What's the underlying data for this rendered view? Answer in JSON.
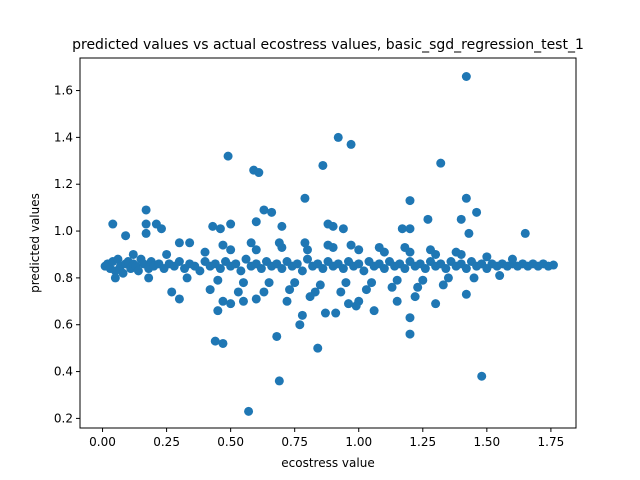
{
  "chart_data": {
    "type": "scatter",
    "title": "predicted values vs actual ecostress values, basic_sgd_regression_test_1",
    "xlabel": "ecostress value",
    "ylabel": "predicted values",
    "xlim": [
      -0.088,
      1.848
    ],
    "ylim": [
      0.159,
      1.739
    ],
    "xticks": [
      "0.00",
      "0.25",
      "0.50",
      "0.75",
      "1.00",
      "1.25",
      "1.50",
      "1.75"
    ],
    "xtick_values": [
      0.0,
      0.25,
      0.5,
      0.75,
      1.0,
      1.25,
      1.5,
      1.75
    ],
    "yticks": [
      "0.2",
      "0.4",
      "0.6",
      "0.8",
      "1.0",
      "1.2",
      "1.4",
      "1.6"
    ],
    "ytick_values": [
      0.2,
      0.4,
      0.6,
      0.8,
      1.0,
      1.2,
      1.4,
      1.6
    ],
    "grid": false,
    "marker_color": "#1f77b4",
    "series": [
      {
        "points": [
          [
            0.01,
            0.85
          ],
          [
            0.02,
            0.86
          ],
          [
            0.03,
            0.84
          ],
          [
            0.04,
            0.87
          ],
          [
            0.05,
            0.83
          ],
          [
            0.06,
            0.88
          ],
          [
            0.07,
            0.85
          ],
          [
            0.08,
            0.82
          ],
          [
            0.09,
            0.86
          ],
          [
            0.1,
            0.87
          ],
          [
            0.11,
            0.84
          ],
          [
            0.12,
            0.86
          ],
          [
            0.13,
            0.85
          ],
          [
            0.14,
            0.83
          ],
          [
            0.15,
            0.88
          ],
          [
            0.16,
            0.86
          ],
          [
            0.18,
            0.84
          ],
          [
            0.19,
            0.87
          ],
          [
            0.2,
            0.85
          ],
          [
            0.22,
            0.86
          ],
          [
            0.24,
            0.84
          ],
          [
            0.26,
            0.86
          ],
          [
            0.28,
            0.85
          ],
          [
            0.3,
            0.87
          ],
          [
            0.32,
            0.84
          ],
          [
            0.34,
            0.86
          ],
          [
            0.36,
            0.85
          ],
          [
            0.38,
            0.83
          ],
          [
            0.4,
            0.87
          ],
          [
            0.42,
            0.85
          ],
          [
            0.44,
            0.86
          ],
          [
            0.46,
            0.84
          ],
          [
            0.48,
            0.87
          ],
          [
            0.5,
            0.85
          ],
          [
            0.52,
            0.86
          ],
          [
            0.54,
            0.83
          ],
          [
            0.56,
            0.88
          ],
          [
            0.58,
            0.85
          ],
          [
            0.6,
            0.86
          ],
          [
            0.62,
            0.84
          ],
          [
            0.64,
            0.87
          ],
          [
            0.66,
            0.85
          ],
          [
            0.68,
            0.86
          ],
          [
            0.7,
            0.84
          ],
          [
            0.72,
            0.87
          ],
          [
            0.74,
            0.85
          ],
          [
            0.76,
            0.86
          ],
          [
            0.78,
            0.83
          ],
          [
            0.8,
            0.88
          ],
          [
            0.82,
            0.85
          ],
          [
            0.84,
            0.86
          ],
          [
            0.86,
            0.84
          ],
          [
            0.88,
            0.87
          ],
          [
            0.9,
            0.85
          ],
          [
            0.92,
            0.86
          ],
          [
            0.94,
            0.84
          ],
          [
            0.96,
            0.87
          ],
          [
            0.98,
            0.85
          ],
          [
            1.0,
            0.86
          ],
          [
            1.02,
            0.83
          ],
          [
            1.04,
            0.87
          ],
          [
            1.06,
            0.85
          ],
          [
            1.08,
            0.86
          ],
          [
            1.1,
            0.84
          ],
          [
            1.12,
            0.87
          ],
          [
            1.14,
            0.85
          ],
          [
            1.16,
            0.86
          ],
          [
            1.18,
            0.84
          ],
          [
            1.2,
            0.87
          ],
          [
            1.22,
            0.85
          ],
          [
            1.24,
            0.86
          ],
          [
            1.26,
            0.84
          ],
          [
            1.28,
            0.87
          ],
          [
            1.3,
            0.85
          ],
          [
            1.32,
            0.86
          ],
          [
            1.34,
            0.84
          ],
          [
            1.36,
            0.87
          ],
          [
            1.38,
            0.85
          ],
          [
            1.4,
            0.86
          ],
          [
            1.42,
            0.84
          ],
          [
            1.44,
            0.87
          ],
          [
            1.46,
            0.85
          ],
          [
            1.48,
            0.86
          ],
          [
            1.5,
            0.84
          ],
          [
            1.52,
            0.86
          ],
          [
            1.54,
            0.85
          ],
          [
            1.56,
            0.86
          ],
          [
            1.58,
            0.85
          ],
          [
            1.6,
            0.86
          ],
          [
            1.62,
            0.85
          ],
          [
            1.64,
            0.86
          ],
          [
            1.66,
            0.85
          ],
          [
            1.68,
            0.86
          ],
          [
            1.7,
            0.85
          ],
          [
            1.72,
            0.86
          ],
          [
            1.74,
            0.85
          ],
          [
            1.76,
            0.855
          ],
          [
            0.05,
            0.8
          ],
          [
            0.12,
            0.9
          ],
          [
            0.18,
            0.8
          ],
          [
            0.25,
            0.9
          ],
          [
            0.33,
            0.8
          ],
          [
            0.4,
            0.91
          ],
          [
            0.45,
            0.79
          ],
          [
            0.5,
            0.92
          ],
          [
            0.55,
            0.78
          ],
          [
            0.6,
            0.92
          ],
          [
            0.65,
            0.78
          ],
          [
            0.7,
            0.93
          ],
          [
            0.75,
            0.78
          ],
          [
            0.8,
            0.92
          ],
          [
            0.85,
            0.77
          ],
          [
            0.9,
            0.93
          ],
          [
            0.95,
            0.78
          ],
          [
            1.0,
            0.92
          ],
          [
            1.05,
            0.78
          ],
          [
            1.1,
            0.91
          ],
          [
            1.15,
            0.79
          ],
          [
            1.2,
            0.91
          ],
          [
            1.25,
            0.79
          ],
          [
            1.3,
            0.9
          ],
          [
            1.35,
            0.8
          ],
          [
            1.4,
            0.9
          ],
          [
            1.45,
            0.8
          ],
          [
            1.5,
            0.89
          ],
          [
            1.55,
            0.81
          ],
          [
            1.6,
            0.88
          ],
          [
            0.42,
            0.75
          ],
          [
            0.47,
            0.94
          ],
          [
            0.53,
            0.74
          ],
          [
            0.58,
            0.95
          ],
          [
            0.63,
            0.74
          ],
          [
            0.69,
            0.95
          ],
          [
            0.73,
            0.75
          ],
          [
            0.79,
            0.95
          ],
          [
            0.83,
            0.74
          ],
          [
            0.88,
            0.94
          ],
          [
            0.93,
            0.74
          ],
          [
            0.97,
            0.94
          ],
          [
            1.03,
            0.75
          ],
          [
            1.08,
            0.93
          ],
          [
            1.13,
            0.76
          ],
          [
            1.18,
            0.93
          ],
          [
            1.23,
            0.76
          ],
          [
            1.28,
            0.92
          ],
          [
            1.33,
            0.77
          ],
          [
            1.38,
            0.91
          ],
          [
            0.04,
            1.03
          ],
          [
            0.09,
            0.98
          ],
          [
            0.17,
            1.09
          ],
          [
            0.17,
            1.03
          ],
          [
            0.17,
            0.99
          ],
          [
            0.21,
            1.03
          ],
          [
            0.23,
            1.01
          ],
          [
            0.3,
            0.95
          ],
          [
            0.34,
            0.95
          ],
          [
            0.43,
            1.02
          ],
          [
            0.46,
            1.01
          ],
          [
            0.5,
            1.03
          ],
          [
            0.49,
            1.32
          ],
          [
            0.59,
            1.26
          ],
          [
            0.61,
            1.25
          ],
          [
            0.6,
            1.04
          ],
          [
            0.63,
            1.09
          ],
          [
            0.66,
            1.08
          ],
          [
            0.7,
            1.02
          ],
          [
            0.79,
            1.14
          ],
          [
            0.86,
            1.28
          ],
          [
            0.92,
            1.4
          ],
          [
            0.97,
            1.37
          ],
          [
            0.88,
            1.03
          ],
          [
            0.9,
            1.02
          ],
          [
            0.94,
            1.01
          ],
          [
            1.2,
            1.13
          ],
          [
            1.17,
            1.01
          ],
          [
            1.2,
            1.01
          ],
          [
            1.27,
            1.05
          ],
          [
            1.32,
            1.29
          ],
          [
            1.42,
            1.14
          ],
          [
            1.46,
            1.08
          ],
          [
            1.4,
            1.05
          ],
          [
            1.43,
            0.99
          ],
          [
            1.65,
            0.99
          ],
          [
            1.42,
            1.66
          ],
          [
            0.27,
            0.74
          ],
          [
            0.3,
            0.71
          ],
          [
            0.45,
            0.66
          ],
          [
            0.47,
            0.7
          ],
          [
            0.5,
            0.69
          ],
          [
            0.44,
            0.53
          ],
          [
            0.47,
            0.52
          ],
          [
            0.57,
            0.23
          ],
          [
            0.68,
            0.55
          ],
          [
            0.69,
            0.36
          ],
          [
            0.77,
            0.6
          ],
          [
            0.78,
            0.64
          ],
          [
            0.84,
            0.5
          ],
          [
            0.87,
            0.65
          ],
          [
            0.91,
            0.65
          ],
          [
            0.96,
            0.69
          ],
          [
            1.0,
            0.7
          ],
          [
            1.06,
            0.66
          ],
          [
            1.15,
            0.7
          ],
          [
            1.2,
            0.63
          ],
          [
            1.2,
            0.56
          ],
          [
            1.22,
            0.72
          ],
          [
            1.3,
            0.69
          ],
          [
            1.42,
            0.73
          ],
          [
            1.48,
            0.38
          ],
          [
            0.55,
            0.7
          ],
          [
            0.6,
            0.71
          ],
          [
            0.72,
            0.7
          ],
          [
            0.81,
            0.72
          ],
          [
            0.99,
            0.68
          ]
        ]
      }
    ]
  }
}
